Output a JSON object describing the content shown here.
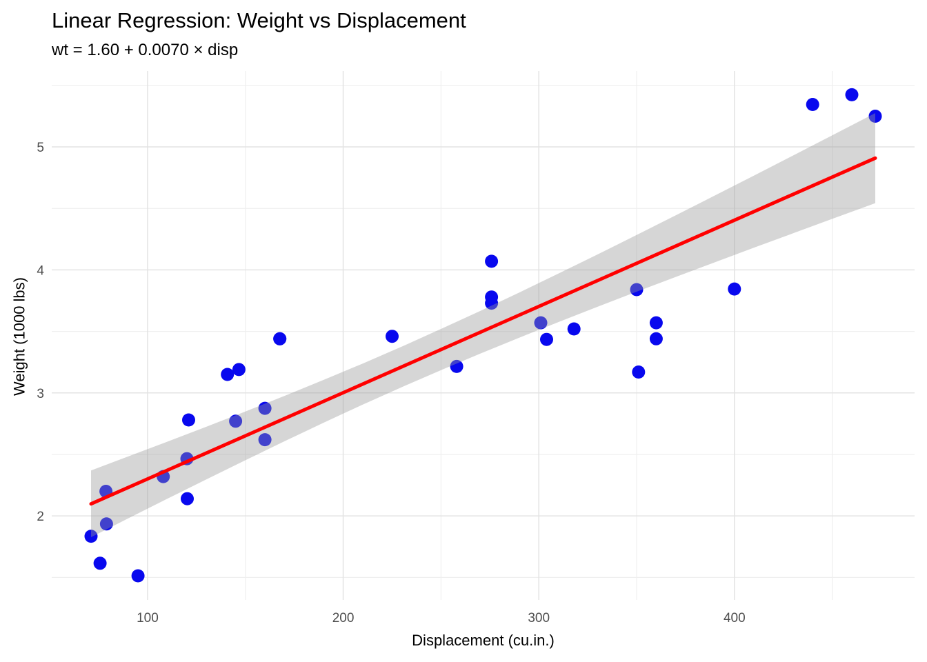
{
  "chart_data": {
    "type": "scatter",
    "title": "Linear Regression: Weight vs Displacement",
    "subtitle": "wt = 1.60 + 0.0070 × disp",
    "xlabel": "Displacement (cu.in.)",
    "ylabel": "Weight (1000 lbs)",
    "xlim": [
      51.0,
      492.1
    ],
    "ylim": [
      1.317,
      5.617
    ],
    "x_ticks": [
      100,
      200,
      300,
      400
    ],
    "x_minor_ticks": [
      150,
      250,
      350,
      450
    ],
    "y_ticks": [
      2,
      3,
      4,
      5
    ],
    "y_minor_ticks": [
      1.5,
      2.5,
      3.5,
      4.5,
      5.5
    ],
    "grid": true,
    "legend": "none",
    "points": [
      [
        160,
        2.62
      ],
      [
        160,
        2.875
      ],
      [
        108,
        2.32
      ],
      [
        258,
        3.215
      ],
      [
        360,
        3.44
      ],
      [
        225,
        3.46
      ],
      [
        360,
        3.57
      ],
      [
        146.7,
        3.19
      ],
      [
        140.8,
        3.15
      ],
      [
        167.6,
        3.44
      ],
      [
        167.6,
        3.44
      ],
      [
        275.8,
        4.07
      ],
      [
        275.8,
        3.73
      ],
      [
        275.8,
        3.78
      ],
      [
        472,
        5.25
      ],
      [
        460,
        5.424
      ],
      [
        440,
        5.345
      ],
      [
        78.7,
        2.2
      ],
      [
        75.7,
        1.615
      ],
      [
        71.1,
        1.835
      ],
      [
        120.1,
        2.465
      ],
      [
        318,
        3.52
      ],
      [
        304,
        3.435
      ],
      [
        350,
        3.84
      ],
      [
        400,
        3.845
      ],
      [
        79,
        1.935
      ],
      [
        120.3,
        2.14
      ],
      [
        95.1,
        1.513
      ],
      [
        351,
        3.17
      ],
      [
        145,
        2.77
      ],
      [
        301,
        3.57
      ],
      [
        121,
        2.78
      ]
    ],
    "regression": {
      "equation": "wt = 1.60 + 0.0070 × disp",
      "intercept": 1.6,
      "slope": 0.007,
      "line": {
        "x1": 71.1,
        "y1": 2.098,
        "x2": 472,
        "y2": 4.909
      }
    },
    "ribbon": {
      "x": [
        71.1,
        90,
        110,
        130,
        150,
        170,
        190,
        210,
        230.7,
        250,
        270,
        290,
        310,
        330,
        350,
        370,
        390,
        410,
        430,
        450,
        472
      ],
      "upper": [
        2.37,
        2.483,
        2.603,
        2.725,
        2.849,
        2.976,
        3.106,
        3.239,
        3.382,
        3.52,
        3.666,
        3.816,
        3.97,
        4.126,
        4.284,
        4.444,
        4.605,
        4.767,
        4.93,
        5.094,
        5.275
      ],
      "lower": [
        1.827,
        1.979,
        2.139,
        2.297,
        2.453,
        2.607,
        2.758,
        2.905,
        3.052,
        3.185,
        3.319,
        3.449,
        3.576,
        3.7,
        3.823,
        3.943,
        4.062,
        4.181,
        4.298,
        4.415,
        4.543
      ]
    },
    "colors": {
      "point": "#0808EE",
      "line": "#FF0000",
      "ribbon": "#999999",
      "ribbon_opacity": 0.4,
      "grid_major": "#E3E3E3",
      "grid_minor": "#EFEFEF",
      "tick_text": "#4D4D4D",
      "background": "#FFFFFF"
    }
  }
}
